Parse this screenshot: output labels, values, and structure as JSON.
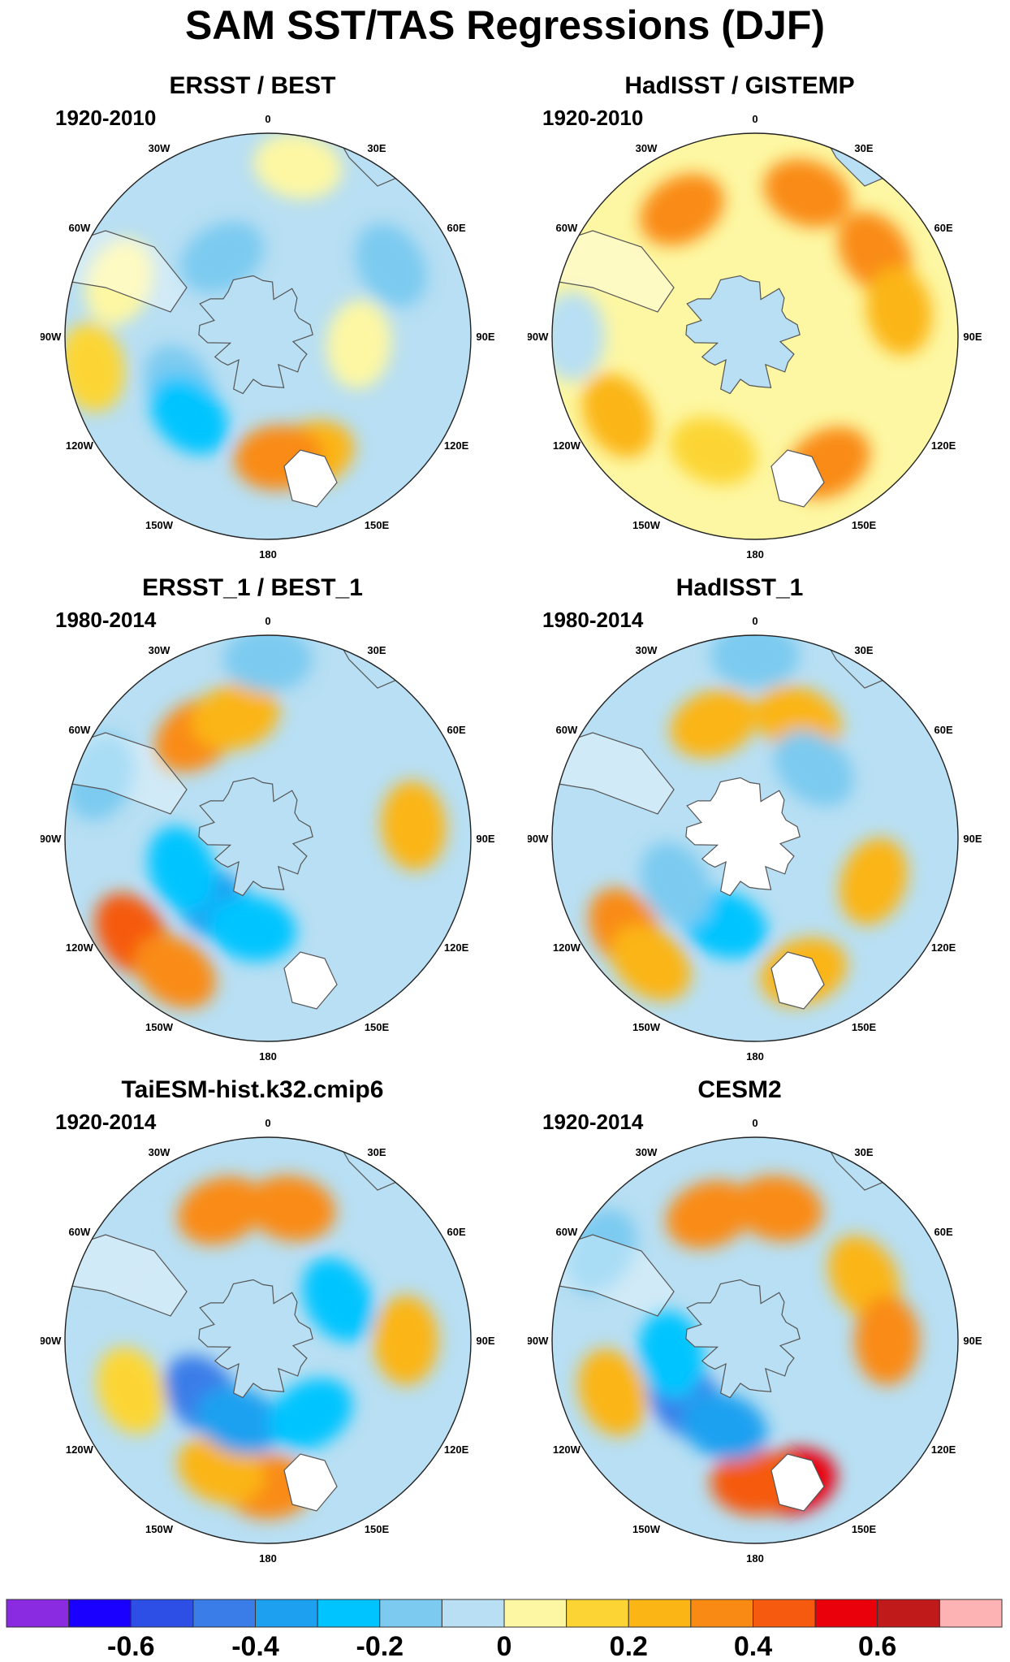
{
  "figure": {
    "title": "SAM SST/TAS Regressions (DJF)"
  },
  "compass": {
    "labels": [
      "0",
      "30E",
      "60E",
      "90E",
      "120E",
      "150E",
      "180",
      "150W",
      "120W",
      "90W",
      "60W",
      "30W"
    ]
  },
  "panels": [
    {
      "title": "ERSST / BEST",
      "period": "1920-2010",
      "ocean": "light",
      "blobs": [
        {
          "lon": 160,
          "r": 0.62,
          "v": 0.25
        },
        {
          "lon": 175,
          "r": 0.6,
          "v": 0.3
        },
        {
          "lon": 240,
          "r": 0.5,
          "v": -0.2
        },
        {
          "lon": 225,
          "r": 0.55,
          "v": -0.28
        },
        {
          "lon": 290,
          "r": 0.78,
          "v": 0.05
        },
        {
          "lon": 330,
          "r": 0.45,
          "v": -0.15
        },
        {
          "lon": 10,
          "r": 0.85,
          "v": 0.08
        },
        {
          "lon": 60,
          "r": 0.7,
          "v": -0.15
        },
        {
          "lon": 95,
          "r": 0.45,
          "v": 0.05
        },
        {
          "lon": 260,
          "r": 0.88,
          "v": 0.1
        }
      ]
    },
    {
      "title": "HadISST / GISTEMP",
      "period": "1920-2010",
      "ocean": "warm",
      "blobs": [
        {
          "lon": 330,
          "r": 0.72,
          "v": 0.35
        },
        {
          "lon": 20,
          "r": 0.75,
          "v": 0.3
        },
        {
          "lon": 55,
          "r": 0.72,
          "v": 0.35
        },
        {
          "lon": 80,
          "r": 0.72,
          "v": 0.25
        },
        {
          "lon": 150,
          "r": 0.72,
          "v": 0.3
        },
        {
          "lon": 240,
          "r": 0.78,
          "v": 0.22
        },
        {
          "lon": 200,
          "r": 0.6,
          "v": 0.15
        },
        {
          "lon": 270,
          "r": 0.9,
          "v": -0.05
        }
      ]
    },
    {
      "title": "ERSST_1 / BEST_1",
      "period": "1980-2014",
      "ocean": "light",
      "blobs": [
        {
          "lon": 235,
          "r": 0.82,
          "v": 0.4
        },
        {
          "lon": 215,
          "r": 0.8,
          "v": 0.3
        },
        {
          "lon": 220,
          "r": 0.42,
          "v": -0.38
        },
        {
          "lon": 250,
          "r": 0.45,
          "v": -0.3
        },
        {
          "lon": 190,
          "r": 0.45,
          "v": -0.22
        },
        {
          "lon": 325,
          "r": 0.62,
          "v": 0.3
        },
        {
          "lon": 345,
          "r": 0.62,
          "v": 0.25
        },
        {
          "lon": 0,
          "r": 0.88,
          "v": -0.2
        },
        {
          "lon": 85,
          "r": 0.72,
          "v": 0.2
        },
        {
          "lon": 290,
          "r": 0.88,
          "v": -0.15
        }
      ]
    },
    {
      "title": "HadISST_1",
      "period": "1980-2014",
      "ocean": "light",
      "blobs": [
        {
          "lon": 235,
          "r": 0.78,
          "v": 0.35
        },
        {
          "lon": 220,
          "r": 0.8,
          "v": 0.25
        },
        {
          "lon": 200,
          "r": 0.45,
          "v": -0.25
        },
        {
          "lon": 240,
          "r": 0.45,
          "v": -0.2
        },
        {
          "lon": 340,
          "r": 0.6,
          "v": 0.28
        },
        {
          "lon": 20,
          "r": 0.62,
          "v": 0.25
        },
        {
          "lon": 40,
          "r": 0.45,
          "v": -0.15
        },
        {
          "lon": 110,
          "r": 0.62,
          "v": 0.2
        },
        {
          "lon": 160,
          "r": 0.7,
          "v": 0.2
        },
        {
          "lon": 0,
          "r": 0.9,
          "v": -0.15
        }
      ]
    },
    {
      "title": "TaiESM-hist.k32.cmip6",
      "period": "1920-2014",
      "ocean": "light",
      "blobs": [
        {
          "lon": 340,
          "r": 0.68,
          "v": 0.38
        },
        {
          "lon": 10,
          "r": 0.66,
          "v": 0.3
        },
        {
          "lon": 180,
          "r": 0.72,
          "v": 0.3
        },
        {
          "lon": 200,
          "r": 0.68,
          "v": 0.22
        },
        {
          "lon": 230,
          "r": 0.42,
          "v": -0.45
        },
        {
          "lon": 200,
          "r": 0.42,
          "v": -0.35
        },
        {
          "lon": 150,
          "r": 0.42,
          "v": -0.3
        },
        {
          "lon": 60,
          "r": 0.4,
          "v": -0.25
        },
        {
          "lon": 90,
          "r": 0.68,
          "v": 0.2
        },
        {
          "lon": 250,
          "r": 0.72,
          "v": 0.15
        },
        {
          "lon": 300,
          "r": 0.88,
          "v": -0.1
        }
      ]
    },
    {
      "title": "CESM2",
      "period": "1920-2014",
      "ocean": "light",
      "blobs": [
        {
          "lon": 165,
          "r": 0.72,
          "v": 0.55
        },
        {
          "lon": 180,
          "r": 0.7,
          "v": 0.4
        },
        {
          "lon": 340,
          "r": 0.66,
          "v": 0.3
        },
        {
          "lon": 10,
          "r": 0.66,
          "v": 0.3
        },
        {
          "lon": 60,
          "r": 0.62,
          "v": 0.25
        },
        {
          "lon": 90,
          "r": 0.65,
          "v": 0.3
        },
        {
          "lon": 230,
          "r": 0.45,
          "v": -0.42
        },
        {
          "lon": 200,
          "r": 0.45,
          "v": -0.35
        },
        {
          "lon": 260,
          "r": 0.42,
          "v": -0.3
        },
        {
          "lon": 250,
          "r": 0.75,
          "v": 0.25
        },
        {
          "lon": 300,
          "r": 0.88,
          "v": -0.15
        }
      ]
    }
  ],
  "colorbar": {
    "colors": [
      "#8a2be2",
      "#1a00ff",
      "#2e4fe6",
      "#3a7de8",
      "#1ea0f0",
      "#00c4ff",
      "#7ccaf0",
      "#b8dff3",
      "#fdf7a3",
      "#fcd535",
      "#fbb515",
      "#f98b14",
      "#f55a0f",
      "#e9000b",
      "#c11a1a",
      "#fdb3b3"
    ],
    "labels": [
      "-0.6",
      "-0.4",
      "-0.2",
      "0",
      "0.2",
      "0.4",
      "0.6"
    ],
    "label_values": [
      -0.6,
      -0.4,
      -0.2,
      0,
      0.2,
      0.4,
      0.6
    ]
  }
}
